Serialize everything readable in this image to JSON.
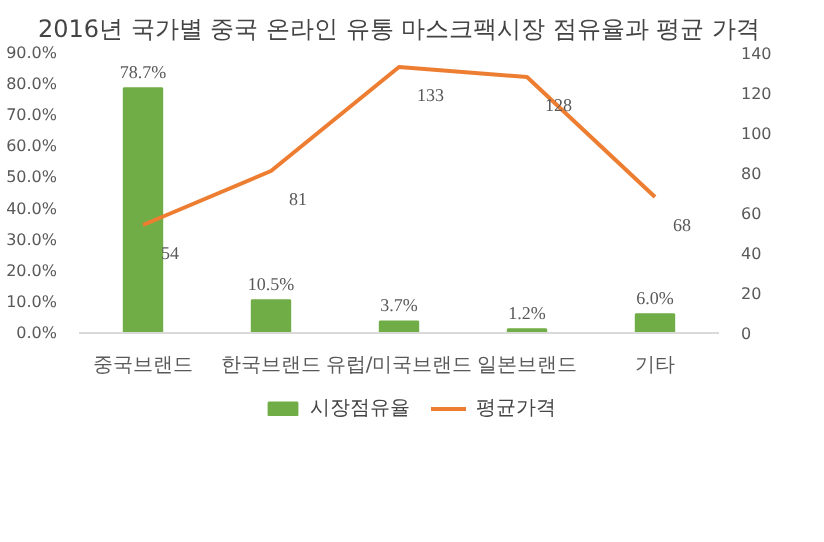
{
  "chart_data": {
    "type": "bar",
    "title": "2016년 국가별 중국 온라인 유통 마스크팩시장 점유율과 평균 가격",
    "categories": [
      "중국브랜드",
      "한국브랜드",
      "유럽/미국브랜드",
      "일본브랜드",
      "기타"
    ],
    "series": [
      {
        "name": "시장점유율",
        "color": "#70ad47",
        "values": [
          78.7,
          10.5,
          3.7,
          1.2,
          6.0
        ],
        "value_labels": [
          "78.7%",
          "10.5%",
          "3.7%",
          "1.2%",
          "6.0%"
        ]
      },
      {
        "name": "평균가격",
        "type": "line",
        "axis": "y2",
        "color": "#ed7d31",
        "values": [
          54,
          81,
          133,
          128,
          68
        ],
        "value_labels": [
          "54",
          "81",
          "133",
          "128",
          "68"
        ]
      }
    ],
    "ylim": [
      0,
      90
    ],
    "yticks": [
      {
        "value": 0,
        "label": "0.0%"
      },
      {
        "value": 10,
        "label": "10.0%"
      },
      {
        "value": 20,
        "label": "20.0%"
      },
      {
        "value": 30,
        "label": "30.0%"
      },
      {
        "value": 40,
        "label": "40.0%"
      },
      {
        "value": 50,
        "label": "50.0%"
      },
      {
        "value": 60,
        "label": "60.0%"
      },
      {
        "value": 70,
        "label": "70.0%"
      },
      {
        "value": 80,
        "label": "80.0%"
      },
      {
        "value": 90,
        "label": "90.0%"
      }
    ],
    "y2lim": [
      0,
      140
    ],
    "y2ticks": [
      0,
      20,
      40,
      60,
      80,
      100,
      120,
      140
    ],
    "grid": false,
    "legend": "bottom",
    "marker": "none",
    "line_style": "solid"
  }
}
